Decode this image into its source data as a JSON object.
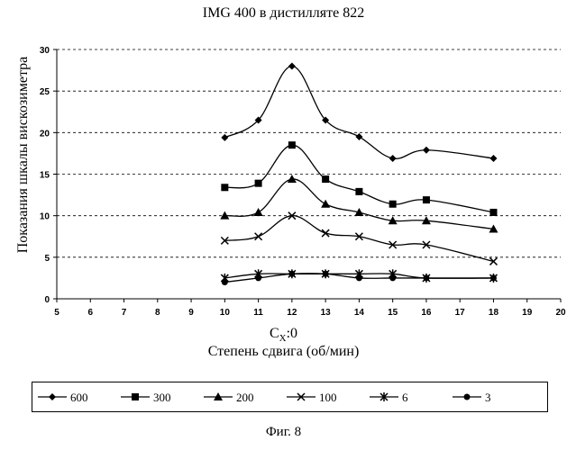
{
  "chart_data": {
    "type": "line",
    "title": "IMG 400 в дистилляте 822",
    "ylabel": "Показания шкалы вискозиметра",
    "xlabel_top": "Cx:0",
    "xlabel": "Степень сдвига (об/мин)",
    "xlim": [
      5,
      20
    ],
    "ylim": [
      0,
      30
    ],
    "x_ticks": [
      5,
      6,
      7,
      8,
      9,
      10,
      11,
      12,
      13,
      14,
      15,
      16,
      17,
      18,
      19,
      20
    ],
    "y_ticks": [
      0,
      5,
      10,
      15,
      20,
      25,
      30
    ],
    "x": [
      10,
      11,
      12,
      13,
      14,
      15,
      16,
      18
    ],
    "series": [
      {
        "name": "600",
        "marker": "diamond",
        "values": [
          19.4,
          21.5,
          28.0,
          21.5,
          19.5,
          16.9,
          17.9,
          16.9
        ]
      },
      {
        "name": "300",
        "marker": "square",
        "values": [
          13.4,
          13.9,
          18.5,
          14.4,
          12.9,
          11.4,
          11.9,
          10.4
        ]
      },
      {
        "name": "200",
        "marker": "triangle",
        "values": [
          10.0,
          10.4,
          14.4,
          11.4,
          10.4,
          9.4,
          9.4,
          8.4
        ]
      },
      {
        "name": "100",
        "marker": "x",
        "values": [
          7.0,
          7.5,
          10.0,
          7.9,
          7.5,
          6.5,
          6.5,
          4.5
        ]
      },
      {
        "name": "6",
        "marker": "asterisk",
        "values": [
          2.5,
          3.0,
          3.0,
          3.0,
          3.0,
          3.0,
          2.5,
          2.5
        ]
      },
      {
        "name": "3",
        "marker": "circle",
        "values": [
          2.0,
          2.5,
          3.0,
          3.0,
          2.5,
          2.5,
          2.5,
          2.5
        ]
      }
    ],
    "grid": "horizontal dashed",
    "legend_position": "bottom"
  },
  "figure": {
    "caption": "Фиг. 8",
    "cx_prefix": "C",
    "cx_sub": "X",
    "cx_suffix": ":0"
  }
}
